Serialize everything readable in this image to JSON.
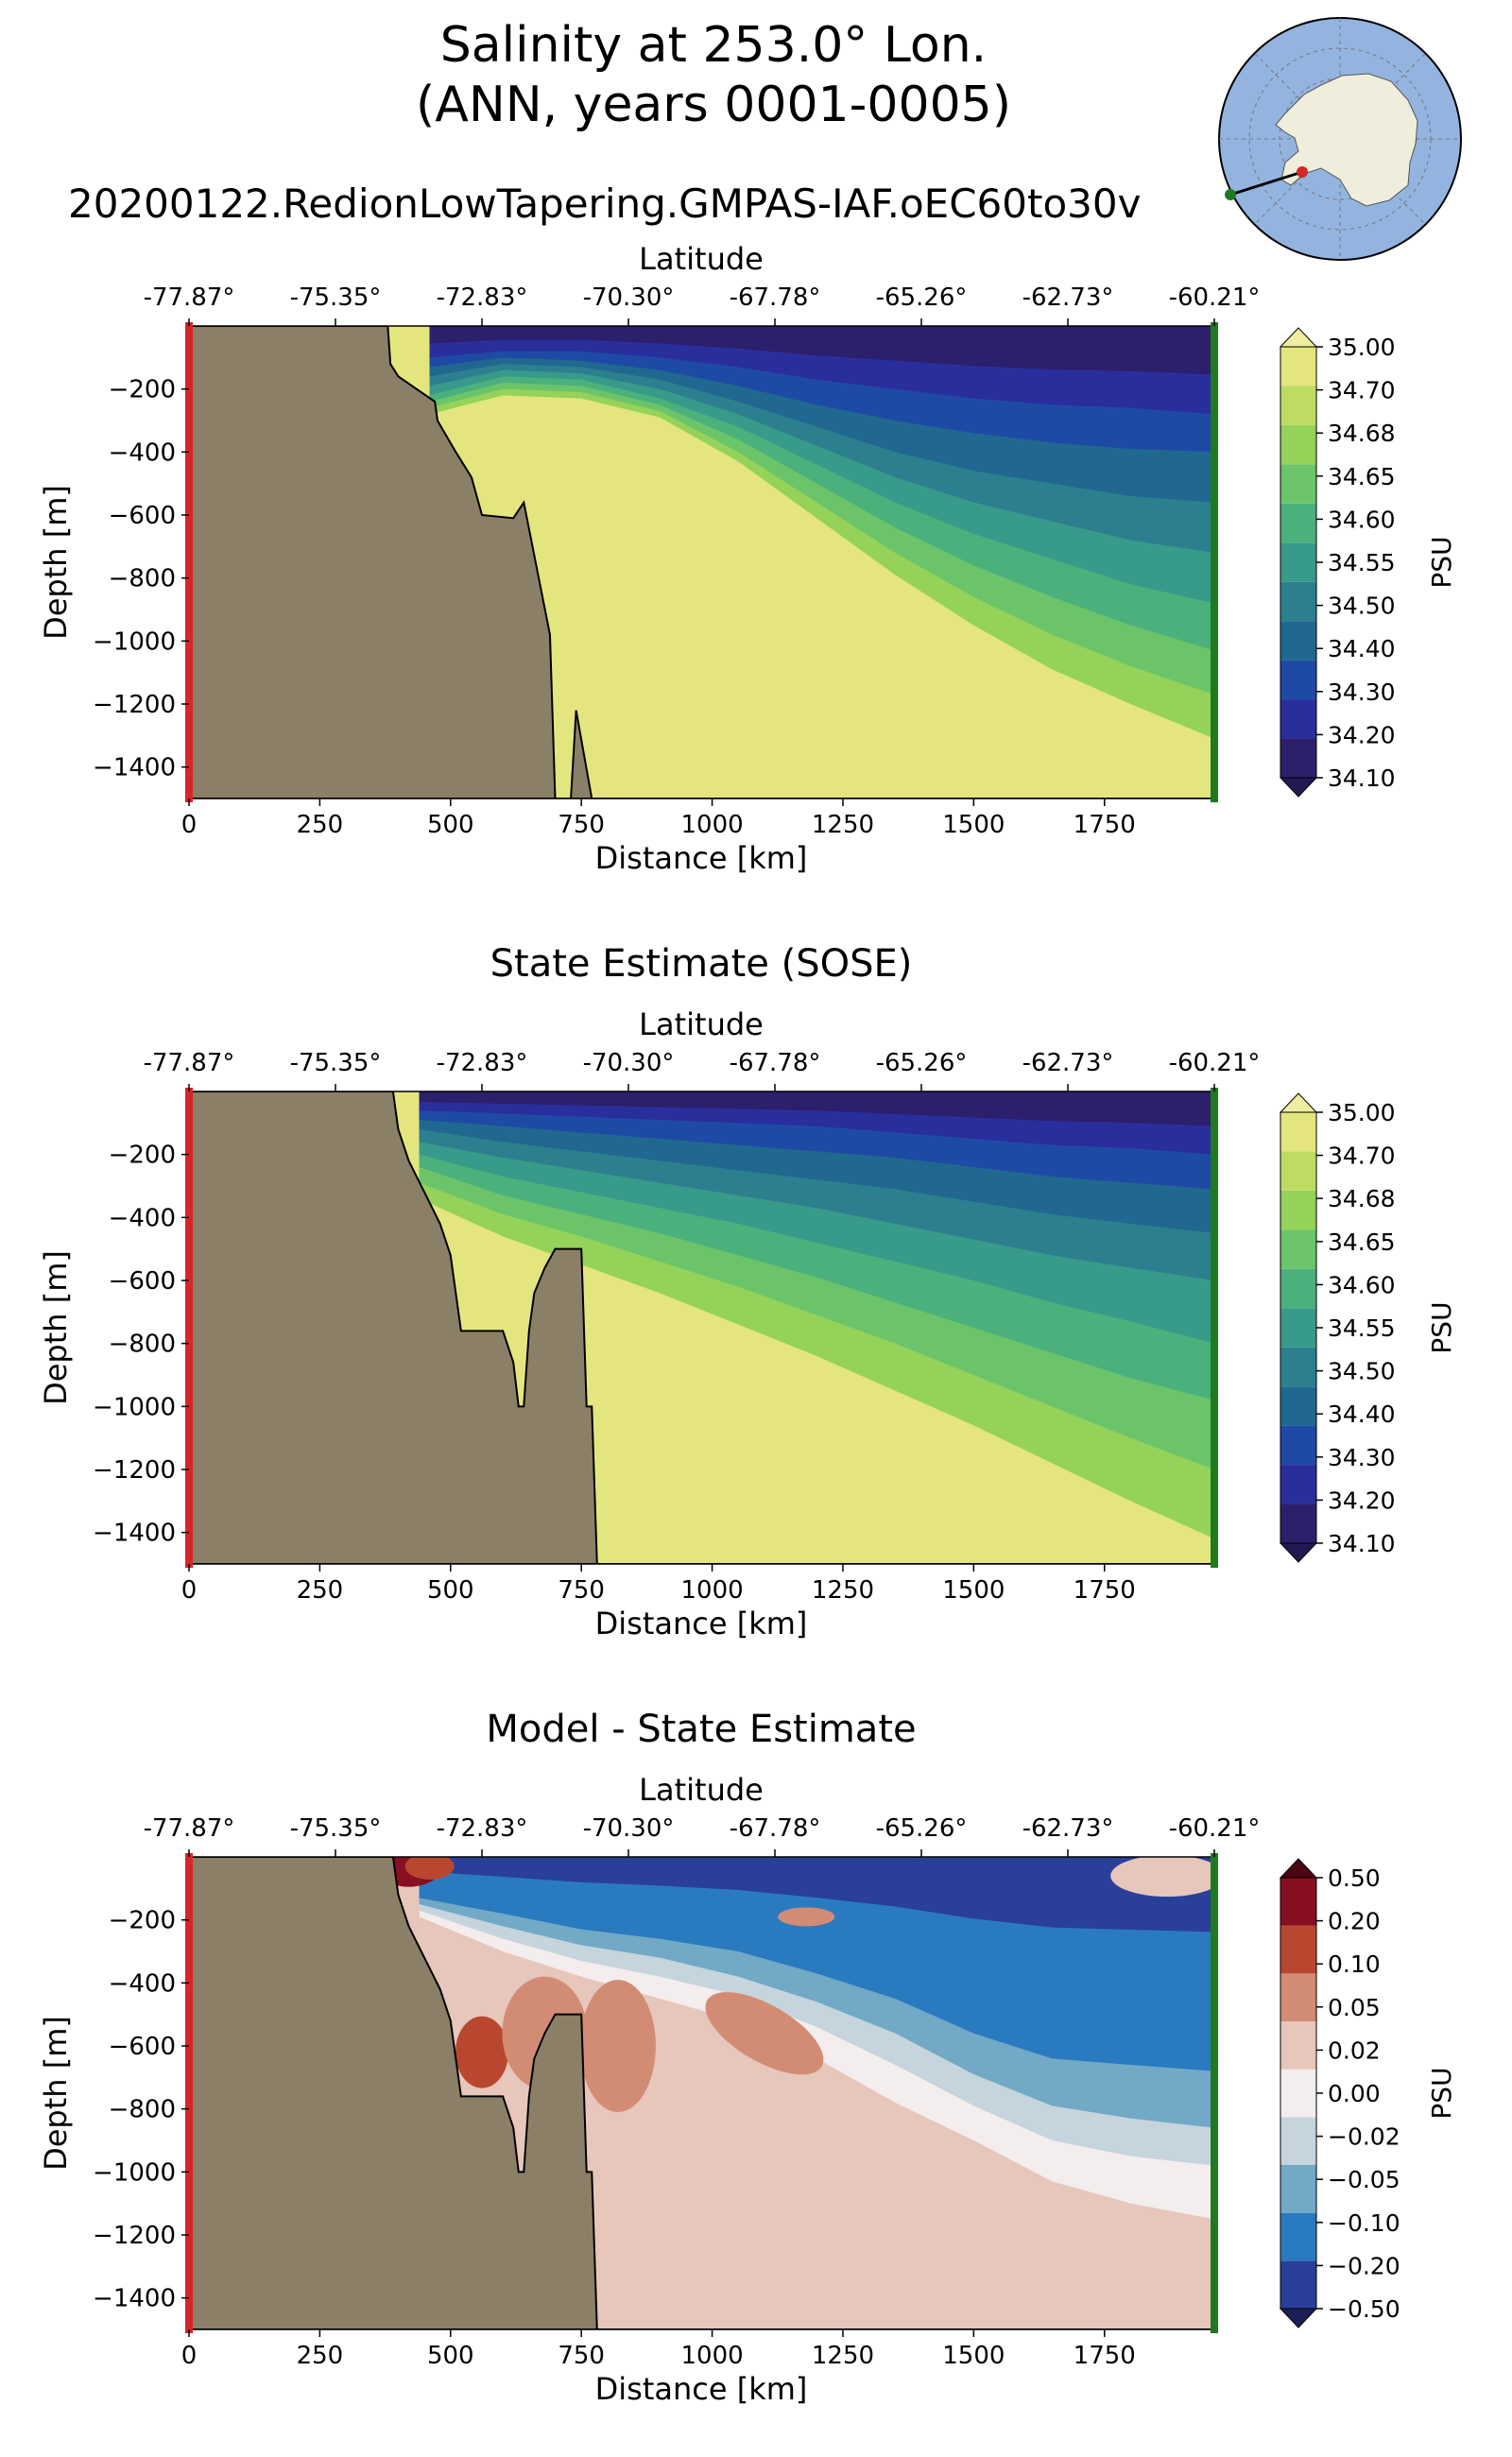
{
  "figure": {
    "title_line1": "Salinity at 253.0° Lon.",
    "title_line2": "(ANN, years 0001-0005)",
    "run_name": "20200122.RedionLowTapering.GMPAS-IAF.oEC60to30v"
  },
  "colors": {
    "land": "#8c7f67",
    "section_start": "#d62728",
    "section_end": "#1f7a1f",
    "inset_ocean": "#94b4e0",
    "inset_land": "#efeedd"
  },
  "chart_data": [
    {
      "type": "contourf",
      "panel": "model",
      "title": "",
      "xlabel": "Distance [km]",
      "ylabel": "Depth [m]",
      "top_xlabel": "Latitude",
      "xlim": [
        0,
        1960
      ],
      "ylim": [
        -1500,
        0
      ],
      "xticks": [
        "0",
        "250",
        "500",
        "750",
        "1000",
        "1250",
        "1500",
        "1750"
      ],
      "yticks": [
        "−200",
        "−400",
        "−600",
        "−800",
        "−1000",
        "−1200",
        "−1400"
      ],
      "latitude_ticks": [
        "-77.87°",
        "-75.35°",
        "-72.83°",
        "-70.30°",
        "-67.78°",
        "-65.26°",
        "-62.73°",
        "-60.21°"
      ],
      "colorbar": {
        "label": "PSU",
        "levels": [
          "34.10",
          "34.20",
          "34.30",
          "34.40",
          "34.50",
          "34.55",
          "34.60",
          "34.65",
          "34.68",
          "34.70",
          "35.00"
        ],
        "colors": [
          "#2c1f6b",
          "#2a2d9c",
          "#1e4aa5",
          "#20688f",
          "#2c7f8f",
          "#389a8a",
          "#4bb07c",
          "#6bc46a",
          "#94d25a",
          "#bfdc62",
          "#e4e57e"
        ],
        "extend_min": "#211a52",
        "extend_max": "#f0eda0"
      },
      "bottom_depth_profile": {
        "x": [
          0,
          380,
          385,
          400,
          470,
          475,
          510,
          540,
          560,
          620,
          640,
          690,
          700,
          730,
          740,
          770,
          1960
        ],
        "depth": [
          0,
          0,
          -120,
          -160,
          -240,
          -300,
          -400,
          -480,
          -600,
          -610,
          -560,
          -980,
          -1500,
          -1500,
          -1220,
          -1500,
          -1500
        ]
      },
      "contour_depths": {
        "x": [
          460,
          600,
          750,
          900,
          1050,
          1200,
          1350,
          1500,
          1650,
          1800,
          1960
        ],
        "34.20": [
          -100,
          -80,
          -80,
          -100,
          -130,
          -170,
          -200,
          -230,
          -250,
          -260,
          -280
        ],
        "34.30": [
          -130,
          -100,
          -110,
          -140,
          -190,
          -250,
          -300,
          -340,
          -370,
          -390,
          -400
        ],
        "34.40": [
          -160,
          -120,
          -130,
          -170,
          -240,
          -320,
          -400,
          -460,
          -500,
          -540,
          -560
        ],
        "34.50": [
          -190,
          -140,
          -150,
          -200,
          -280,
          -380,
          -480,
          -560,
          -620,
          -680,
          -720
        ],
        "34.55": [
          -220,
          -160,
          -170,
          -230,
          -320,
          -440,
          -560,
          -660,
          -740,
          -820,
          -880
        ],
        "34.60": [
          -240,
          -180,
          -190,
          -250,
          -360,
          -500,
          -640,
          -760,
          -860,
          -950,
          -1030
        ],
        "34.65": [
          -260,
          -200,
          -210,
          -270,
          -400,
          -560,
          -720,
          -860,
          -980,
          -1080,
          -1170
        ],
        "34.68": [
          -280,
          -220,
          -230,
          -290,
          -430,
          -610,
          -790,
          -950,
          -1090,
          -1200,
          -1310
        ]
      }
    },
    {
      "type": "contourf",
      "panel": "reference",
      "title": "State Estimate (SOSE)",
      "xlabel": "Distance [km]",
      "ylabel": "Depth [m]",
      "top_xlabel": "Latitude",
      "xlim": [
        0,
        1960
      ],
      "ylim": [
        -1500,
        0
      ],
      "xticks": [
        "0",
        "250",
        "500",
        "750",
        "1000",
        "1250",
        "1500",
        "1750"
      ],
      "yticks": [
        "−200",
        "−400",
        "−600",
        "−800",
        "−1000",
        "−1200",
        "−1400"
      ],
      "latitude_ticks": [
        "-77.87°",
        "-75.35°",
        "-72.83°",
        "-70.30°",
        "-67.78°",
        "-65.26°",
        "-62.73°",
        "-60.21°"
      ],
      "colorbar": {
        "label": "PSU",
        "levels": [
          "34.10",
          "34.20",
          "34.30",
          "34.40",
          "34.50",
          "34.55",
          "34.60",
          "34.65",
          "34.68",
          "34.70",
          "35.00"
        ],
        "colors": [
          "#2c1f6b",
          "#2a2d9c",
          "#1e4aa5",
          "#20688f",
          "#2c7f8f",
          "#389a8a",
          "#4bb07c",
          "#6bc46a",
          "#94d25a",
          "#bfdc62",
          "#e4e57e"
        ],
        "extend_min": "#211a52",
        "extend_max": "#f0eda0"
      },
      "bottom_depth_profile": {
        "x": [
          0,
          390,
          400,
          420,
          450,
          480,
          500,
          520,
          600,
          620,
          630,
          640,
          650,
          660,
          680,
          700,
          720,
          750,
          760,
          770,
          780,
          1960
        ],
        "depth": [
          0,
          0,
          -120,
          -220,
          -320,
          -420,
          -520,
          -760,
          -760,
          -860,
          -1000,
          -1000,
          -760,
          -640,
          -560,
          -500,
          -500,
          -500,
          -1000,
          -1000,
          -1500,
          -1500
        ]
      },
      "contour_depths": {
        "x": [
          440,
          600,
          750,
          900,
          1050,
          1200,
          1350,
          1500,
          1650,
          1800,
          1960
        ],
        "34.20": [
          -60,
          -70,
          -80,
          -90,
          -100,
          -110,
          -130,
          -150,
          -170,
          -180,
          -200
        ],
        "34.30": [
          -90,
          -110,
          -130,
          -150,
          -170,
          -190,
          -210,
          -240,
          -270,
          -290,
          -310
        ],
        "34.40": [
          -120,
          -160,
          -190,
          -220,
          -250,
          -280,
          -310,
          -350,
          -390,
          -420,
          -450
        ],
        "34.50": [
          -160,
          -210,
          -250,
          -290,
          -330,
          -370,
          -420,
          -470,
          -520,
          -560,
          -600
        ],
        "34.55": [
          -200,
          -270,
          -320,
          -370,
          -420,
          -480,
          -540,
          -600,
          -670,
          -730,
          -800
        ],
        "34.60": [
          -240,
          -330,
          -390,
          -450,
          -520,
          -590,
          -670,
          -750,
          -830,
          -910,
          -980
        ],
        "34.65": [
          -290,
          -390,
          -460,
          -540,
          -620,
          -710,
          -800,
          -900,
          -1000,
          -1100,
          -1200
        ],
        "34.68": [
          -340,
          -460,
          -550,
          -640,
          -740,
          -840,
          -950,
          -1060,
          -1180,
          -1300,
          -1420
        ]
      }
    },
    {
      "type": "contourf",
      "panel": "bias",
      "title": "Model - State Estimate",
      "xlabel": "Distance [km]",
      "ylabel": "Depth [m]",
      "top_xlabel": "Latitude",
      "xlim": [
        0,
        1960
      ],
      "ylim": [
        -1500,
        0
      ],
      "xticks": [
        "0",
        "250",
        "500",
        "750",
        "1000",
        "1250",
        "1500",
        "1750"
      ],
      "yticks": [
        "−200",
        "−400",
        "−600",
        "−800",
        "−1000",
        "−1200",
        "−1400"
      ],
      "latitude_ticks": [
        "-77.87°",
        "-75.35°",
        "-72.83°",
        "-70.30°",
        "-67.78°",
        "-65.26°",
        "-62.73°",
        "-60.21°"
      ],
      "colorbar": {
        "label": "PSU",
        "levels": [
          "−0.50",
          "−0.20",
          "−0.10",
          "−0.05",
          "−0.02",
          "0.00",
          "0.02",
          "0.05",
          "0.10",
          "0.20",
          "0.50"
        ],
        "colors": [
          "#2a3f9a",
          "#2a7ac0",
          "#71a9c6",
          "#c6d4de",
          "#f3eded",
          "#e7c6bb",
          "#d28c73",
          "#b9472f",
          "#880e22"
        ],
        "extend_min": "#1c1f55",
        "extend_max": "#4a0612"
      },
      "bottom_depth_profile": {
        "x": [
          0,
          390,
          400,
          420,
          450,
          480,
          500,
          520,
          600,
          620,
          630,
          640,
          650,
          660,
          680,
          700,
          720,
          750,
          760,
          770,
          780,
          1960
        ],
        "depth": [
          0,
          0,
          -120,
          -220,
          -320,
          -420,
          -520,
          -760,
          -760,
          -860,
          -1000,
          -1000,
          -760,
          -640,
          -560,
          -500,
          -500,
          -500,
          -1000,
          -1000,
          -1500,
          -1500
        ]
      },
      "boundaries": {
        "x": [
          440,
          600,
          750,
          900,
          1050,
          1200,
          1350,
          1500,
          1650,
          1800,
          1960
        ],
        "-0.10": [
          -130,
          -180,
          -230,
          -260,
          -300,
          -370,
          -450,
          -560,
          -640,
          -660,
          -680
        ],
        "-0.05": [
          -150,
          -220,
          -280,
          -320,
          -380,
          -460,
          -560,
          -690,
          -790,
          -830,
          -860
        ],
        "-0.02": [
          -170,
          -260,
          -330,
          -380,
          -440,
          -540,
          -660,
          -790,
          -900,
          -950,
          -980
        ],
        "0.00": [
          -190,
          -300,
          -380,
          -450,
          -520,
          -640,
          -780,
          -900,
          -1030,
          -1100,
          -1150
        ],
        "0.02": [
          -1500,
          -1500,
          -1500,
          -1500,
          -1500,
          -1500,
          -1500,
          -1500,
          -1500,
          -1500,
          -1500
        ]
      }
    }
  ]
}
